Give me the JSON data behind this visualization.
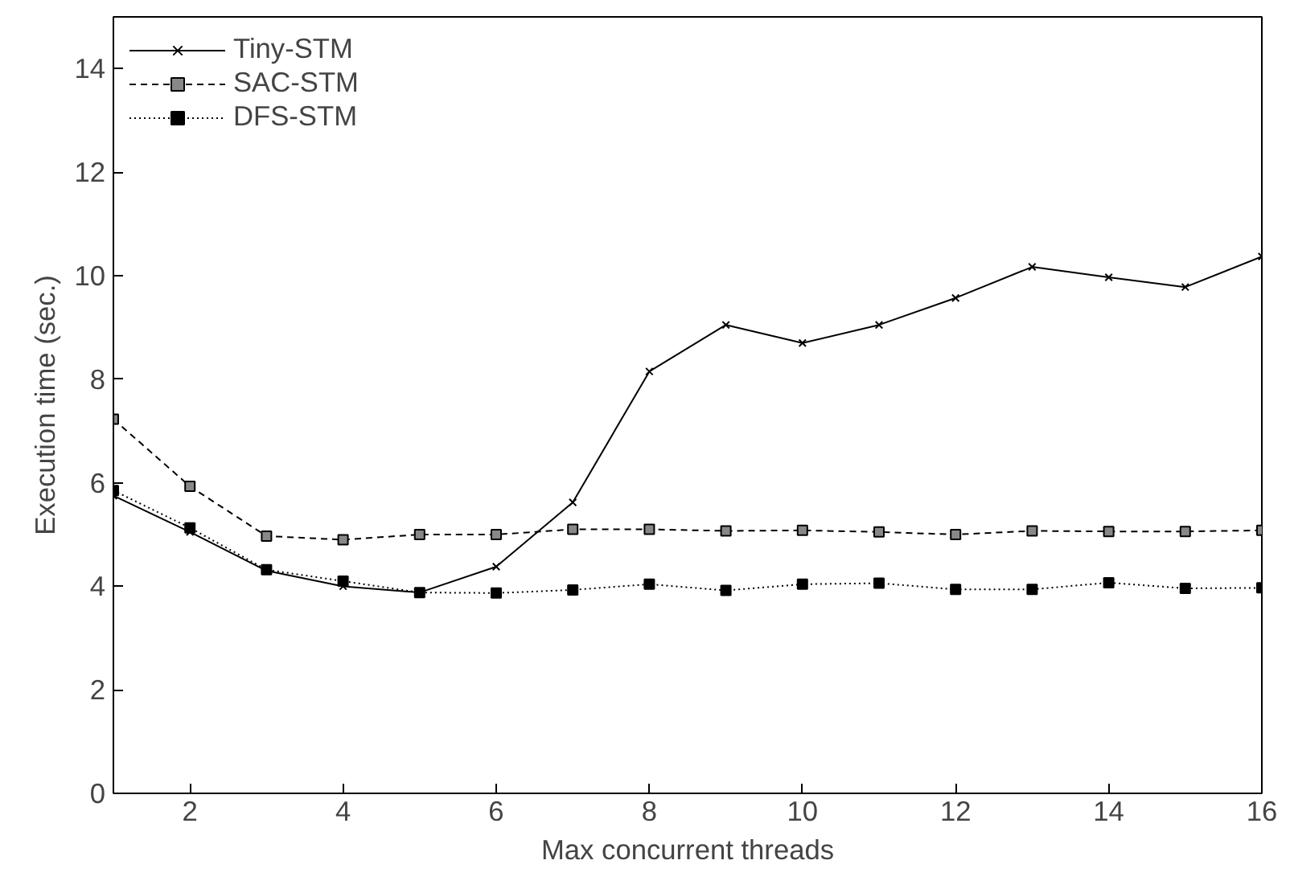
{
  "chart_data": {
    "type": "line",
    "xlabel": "Max concurrent threads",
    "ylabel": "Execution time (sec.)",
    "x": [
      1,
      2,
      3,
      4,
      5,
      6,
      7,
      8,
      9,
      10,
      11,
      12,
      13,
      14,
      15,
      16
    ],
    "xlim": [
      1,
      16
    ],
    "xticks": [
      2,
      4,
      6,
      8,
      10,
      12,
      14,
      16
    ],
    "ylim": [
      0,
      15
    ],
    "yticks": [
      0,
      2,
      4,
      6,
      8,
      10,
      12,
      14
    ],
    "grid": false,
    "legend": "top left",
    "series": [
      {
        "name": "Tiny-STM",
        "color": "#000000",
        "marker": "cross",
        "line_style": "solid",
        "values": [
          5.75,
          5.05,
          4.3,
          4.0,
          3.88,
          4.38,
          5.62,
          8.15,
          9.05,
          8.7,
          9.05,
          9.57,
          10.17,
          9.97,
          9.78,
          10.37
        ]
      },
      {
        "name": "SAC-STM",
        "color": "#000000",
        "marker": "square",
        "line_style": "dashed",
        "values": [
          7.23,
          5.93,
          4.97,
          4.9,
          5.0,
          5.0,
          5.1,
          5.1,
          5.07,
          5.08,
          5.05,
          5.0,
          5.07,
          5.06,
          5.06,
          5.08
        ]
      },
      {
        "name": "DFS-STM",
        "color": "#000000",
        "marker": "square",
        "line_style": "dotted",
        "values": [
          5.85,
          5.13,
          4.32,
          4.1,
          3.88,
          3.87,
          3.93,
          4.04,
          3.92,
          4.04,
          4.06,
          3.94,
          3.94,
          4.07,
          3.96,
          3.97
        ]
      }
    ]
  }
}
